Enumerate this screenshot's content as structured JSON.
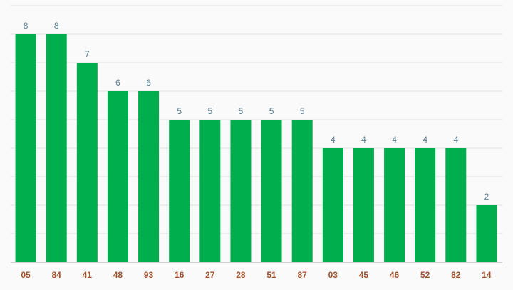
{
  "chart_data": {
    "type": "bar",
    "categories": [
      "05",
      "84",
      "41",
      "48",
      "93",
      "16",
      "27",
      "28",
      "51",
      "87",
      "03",
      "45",
      "46",
      "52",
      "82",
      "14"
    ],
    "values": [
      8,
      8,
      7,
      6,
      6,
      5,
      5,
      5,
      5,
      5,
      4,
      4,
      4,
      4,
      4,
      2
    ],
    "ylim": [
      0,
      9
    ],
    "grid": true,
    "data_labels": true,
    "colors": {
      "bar": "#00ae4e",
      "data_label": "#5a7f94",
      "tick_label": "#a0522d"
    }
  }
}
